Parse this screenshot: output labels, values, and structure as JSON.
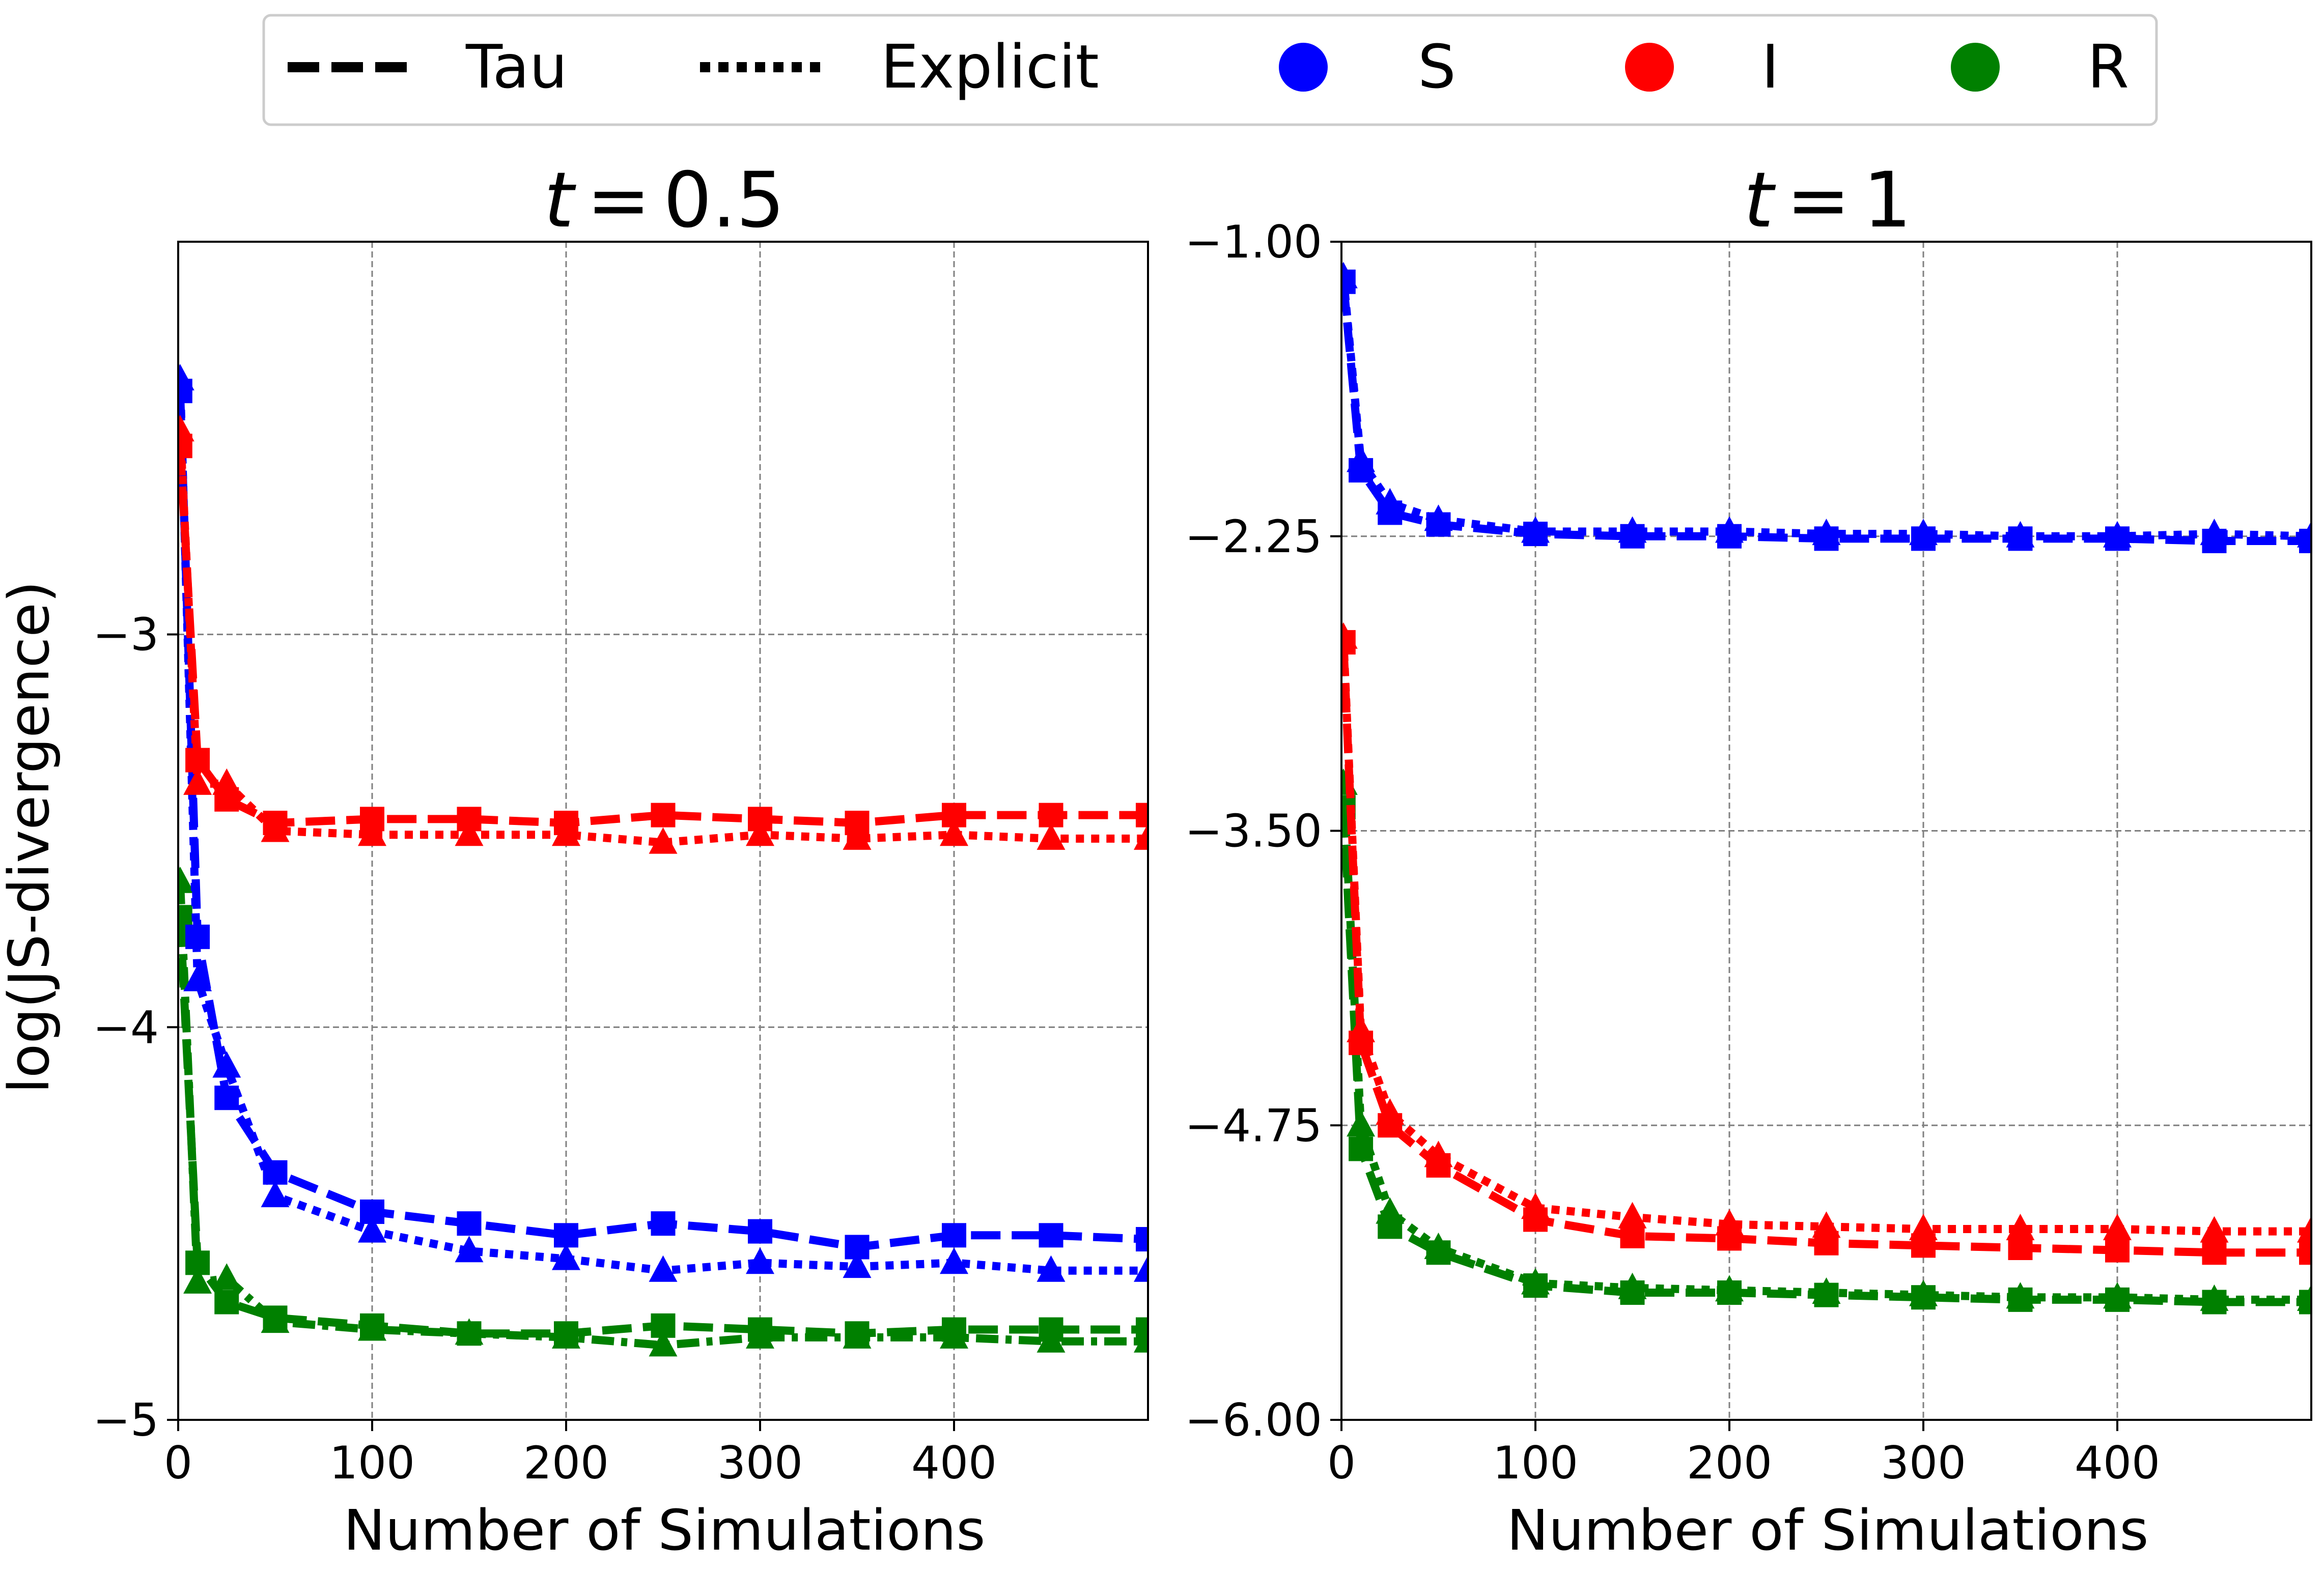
{
  "colors": {
    "S": "#0000ff",
    "I": "#ff0000",
    "R": "#008000",
    "grid": "#808080"
  },
  "legend": {
    "tau_label": "Tau",
    "explicit_label": "Explicit",
    "s_label": "S",
    "i_label": "I",
    "r_label": "R"
  },
  "chart_data": [
    {
      "type": "line",
      "title_var": "t",
      "title_op": "=",
      "title_val": "0.5",
      "xlabel": "Number of Simulations",
      "ylabel": "log(JS-divergence)",
      "xlim": [
        0,
        500
      ],
      "ylim": [
        -5,
        -2
      ],
      "xticks": [
        0,
        100,
        200,
        300,
        400
      ],
      "xtick_labels": [
        "0",
        "100",
        "200",
        "300",
        "400"
      ],
      "yticks": [
        -5,
        -4,
        -3
      ],
      "ytick_labels": [
        "−5",
        "−4",
        "−3"
      ],
      "grid": true,
      "x": [
        1,
        10,
        25,
        50,
        100,
        150,
        200,
        250,
        300,
        350,
        400,
        450,
        500
      ],
      "series": [
        {
          "var": "S",
          "method": "Tau",
          "values": [
            -2.38,
            -3.77,
            -4.18,
            -4.37,
            -4.47,
            -4.5,
            -4.53,
            -4.5,
            -4.52,
            -4.56,
            -4.53,
            -4.53,
            -4.54
          ]
        },
        {
          "var": "S",
          "method": "Explicit",
          "values": [
            -2.35,
            -3.88,
            -4.1,
            -4.43,
            -4.52,
            -4.57,
            -4.59,
            -4.62,
            -4.6,
            -4.61,
            -4.6,
            -4.62,
            -4.62
          ]
        },
        {
          "var": "I",
          "method": "Tau",
          "values": [
            -2.52,
            -3.32,
            -3.42,
            -3.48,
            -3.47,
            -3.47,
            -3.48,
            -3.46,
            -3.47,
            -3.48,
            -3.46,
            -3.46,
            -3.46
          ]
        },
        {
          "var": "I",
          "method": "Explicit",
          "values": [
            -2.48,
            -3.38,
            -3.38,
            -3.5,
            -3.51,
            -3.51,
            -3.51,
            -3.53,
            -3.51,
            -3.52,
            -3.51,
            -3.52,
            -3.52
          ]
        },
        {
          "var": "R",
          "method": "Tau",
          "values": [
            -3.72,
            -4.6,
            -4.7,
            -4.74,
            -4.76,
            -4.78,
            -4.78,
            -4.76,
            -4.77,
            -4.78,
            -4.77,
            -4.77,
            -4.77
          ]
        },
        {
          "var": "R",
          "method": "Explicit",
          "values": [
            -3.63,
            -4.65,
            -4.64,
            -4.75,
            -4.77,
            -4.78,
            -4.79,
            -4.81,
            -4.79,
            -4.79,
            -4.79,
            -4.8,
            -4.8
          ]
        }
      ]
    },
    {
      "type": "line",
      "title_var": "t",
      "title_op": "=",
      "title_val": "1",
      "xlabel": "Number of Simulations",
      "ylabel": "",
      "xlim": [
        0,
        500
      ],
      "ylim": [
        -6,
        -1
      ],
      "xticks": [
        0,
        100,
        200,
        300,
        400
      ],
      "xtick_labels": [
        "0",
        "100",
        "200",
        "300",
        "400"
      ],
      "yticks": [
        -6,
        -4.75,
        -3.5,
        -2.25,
        -1
      ],
      "ytick_labels": [
        "−6.00",
        "−4.75",
        "−3.50",
        "−2.25",
        "−1.00"
      ],
      "grid": true,
      "x": [
        1,
        10,
        25,
        50,
        100,
        150,
        200,
        250,
        300,
        350,
        400,
        450,
        500
      ],
      "series": [
        {
          "var": "S",
          "method": "Tau",
          "values": [
            -1.17,
            -1.97,
            -2.15,
            -2.2,
            -2.24,
            -2.25,
            -2.25,
            -2.26,
            -2.26,
            -2.26,
            -2.26,
            -2.27,
            -2.27
          ]
        },
        {
          "var": "S",
          "method": "Explicit",
          "values": [
            -1.15,
            -1.93,
            -2.11,
            -2.18,
            -2.23,
            -2.23,
            -2.23,
            -2.24,
            -2.24,
            -2.25,
            -2.25,
            -2.24,
            -2.25
          ]
        },
        {
          "var": "I",
          "method": "Tau",
          "values": [
            -2.7,
            -4.4,
            -4.75,
            -4.92,
            -5.15,
            -5.22,
            -5.23,
            -5.25,
            -5.26,
            -5.27,
            -5.28,
            -5.29,
            -5.29
          ]
        },
        {
          "var": "I",
          "method": "Explicit",
          "values": [
            -2.68,
            -4.35,
            -4.7,
            -4.88,
            -5.1,
            -5.14,
            -5.17,
            -5.18,
            -5.19,
            -5.19,
            -5.19,
            -5.2,
            -5.2
          ]
        },
        {
          "var": "R",
          "method": "Tau",
          "values": [
            -3.4,
            -4.85,
            -5.18,
            -5.29,
            -5.43,
            -5.46,
            -5.46,
            -5.47,
            -5.48,
            -5.49,
            -5.49,
            -5.5,
            -5.5
          ]
        },
        {
          "var": "R",
          "method": "Explicit",
          "values": [
            -3.3,
            -4.75,
            -5.12,
            -5.27,
            -5.42,
            -5.44,
            -5.45,
            -5.46,
            -5.47,
            -5.48,
            -5.48,
            -5.49,
            -5.49
          ]
        }
      ]
    }
  ]
}
